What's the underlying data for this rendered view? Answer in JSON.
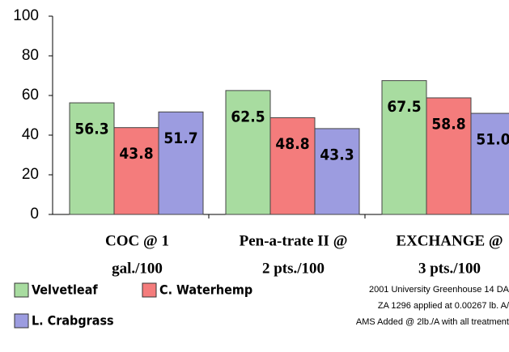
{
  "chart_data": {
    "type": "bar",
    "categories": [
      [
        "COC @ 1",
        "gal./100"
      ],
      [
        "Pen-a-trate II @",
        "2 pts./100"
      ],
      [
        "EXCHANGE @",
        "3 pts./100"
      ]
    ],
    "series": [
      {
        "name": "Velvetleaf",
        "color": "#a8dca0",
        "values": [
          56.3,
          62.5,
          67.5
        ]
      },
      {
        "name": "C. Waterhemp",
        "color": "#f47c7c",
        "values": [
          43.8,
          48.8,
          58.8
        ]
      },
      {
        "name": "L. Crabgrass",
        "color": "#9c9ce0",
        "values": [
          51.7,
          43.3,
          51.0
        ],
        "value_labels": [
          "51.7",
          "43.3",
          "51.0"
        ]
      }
    ],
    "ylim": [
      0,
      100
    ],
    "yticks": [
      0,
      20,
      40,
      60,
      80,
      100
    ],
    "annotations": [
      "2001 University Greenhouse 14 DA",
      "ZA 1296 applied at 0.00267 lb. A/",
      "AMS Added @ 2lb./A with all treatment"
    ]
  }
}
